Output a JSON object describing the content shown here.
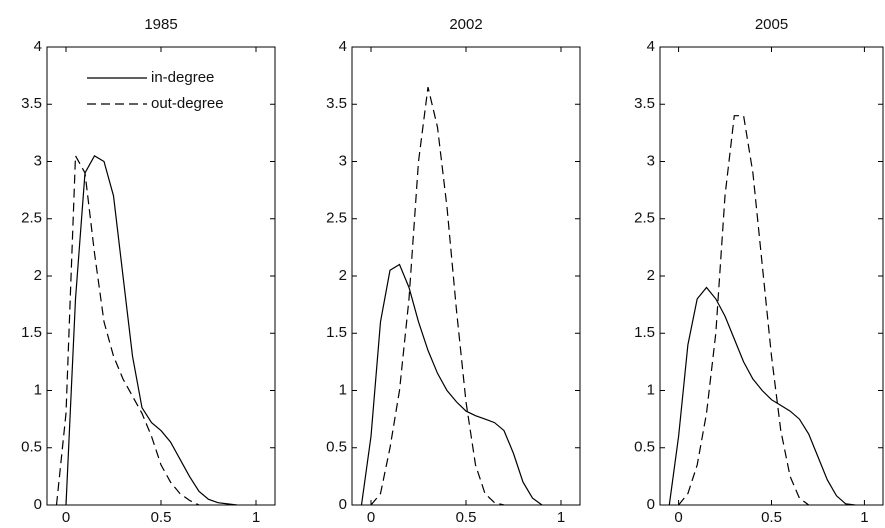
{
  "chart_data": [
    {
      "type": "line",
      "title": "1985",
      "x": [
        -0.05,
        0,
        0.05,
        0.1,
        0.15,
        0.2,
        0.25,
        0.3,
        0.35,
        0.4,
        0.45,
        0.5,
        0.55,
        0.6,
        0.65,
        0.7,
        0.75,
        0.8,
        0.85,
        0.9,
        0.95
      ],
      "series": [
        {
          "name": "in-degree",
          "color": "#000000",
          "dash": "solid",
          "values": [
            null,
            0,
            1.8,
            2.9,
            3.05,
            3.0,
            2.7,
            2.0,
            1.3,
            0.85,
            0.72,
            0.65,
            0.55,
            0.4,
            0.25,
            0.12,
            0.05,
            0.02,
            0.01,
            0,
            null
          ]
        },
        {
          "name": "out-degree",
          "color": "#000000",
          "dash": "dashed",
          "values": [
            0,
            0.8,
            3.05,
            2.9,
            2.2,
            1.6,
            1.3,
            1.1,
            0.95,
            0.8,
            0.6,
            0.35,
            0.2,
            0.1,
            0.04,
            0,
            null,
            null,
            null,
            null,
            null
          ]
        }
      ],
      "xlim": [
        -0.1,
        1.1
      ],
      "xticks": [
        0,
        0.5,
        1
      ],
      "ylim": [
        0,
        4
      ],
      "yticks": [
        0,
        0.5,
        1,
        1.5,
        2,
        2.5,
        3,
        3.5,
        4
      ],
      "legend": "upper right"
    },
    {
      "type": "line",
      "title": "2002",
      "x": [
        -0.05,
        0,
        0.05,
        0.1,
        0.15,
        0.2,
        0.25,
        0.3,
        0.35,
        0.4,
        0.45,
        0.5,
        0.55,
        0.6,
        0.65,
        0.7,
        0.75,
        0.8,
        0.85,
        0.9,
        0.95
      ],
      "series": [
        {
          "color": "#000000",
          "dash": "solid",
          "values": [
            0,
            0.6,
            1.6,
            2.05,
            2.1,
            1.9,
            1.6,
            1.35,
            1.15,
            1.0,
            0.9,
            0.82,
            0.78,
            0.75,
            0.72,
            0.65,
            0.45,
            0.2,
            0.06,
            0,
            null
          ]
        },
        {
          "color": "#000000",
          "dash": "dashed",
          "values": [
            null,
            0,
            0.1,
            0.5,
            1.0,
            1.8,
            3.0,
            3.65,
            3.3,
            2.6,
            1.7,
            0.9,
            0.35,
            0.1,
            0.02,
            0,
            null,
            null,
            null,
            null,
            null
          ]
        }
      ],
      "xlim": [
        -0.1,
        1.1
      ],
      "xticks": [
        0,
        0.5,
        1
      ],
      "ylim": [
        0,
        4
      ],
      "yticks": [
        0,
        0.5,
        1,
        1.5,
        2,
        2.5,
        3,
        3.5,
        4
      ]
    },
    {
      "type": "line",
      "title": "2005",
      "x": [
        -0.05,
        0,
        0.05,
        0.1,
        0.15,
        0.2,
        0.25,
        0.3,
        0.35,
        0.4,
        0.45,
        0.5,
        0.55,
        0.6,
        0.65,
        0.7,
        0.75,
        0.8,
        0.85,
        0.9,
        0.95
      ],
      "series": [
        {
          "color": "#000000",
          "dash": "solid",
          "values": [
            0,
            0.6,
            1.4,
            1.8,
            1.9,
            1.8,
            1.65,
            1.45,
            1.25,
            1.1,
            1.0,
            0.92,
            0.87,
            0.82,
            0.75,
            0.62,
            0.42,
            0.22,
            0.08,
            0.01,
            0
          ]
        },
        {
          "color": "#000000",
          "dash": "dashed",
          "values": [
            null,
            0,
            0.1,
            0.35,
            0.8,
            1.5,
            2.7,
            3.4,
            3.4,
            2.9,
            2.1,
            1.3,
            0.65,
            0.25,
            0.06,
            0,
            null,
            null,
            null,
            null,
            null
          ]
        }
      ],
      "xlim": [
        -0.1,
        1.1
      ],
      "xticks": [
        0,
        0.5,
        1
      ],
      "ylim": [
        0,
        4
      ],
      "yticks": [
        0,
        0.5,
        1,
        1.5,
        2,
        2.5,
        3,
        3.5,
        4
      ]
    }
  ]
}
